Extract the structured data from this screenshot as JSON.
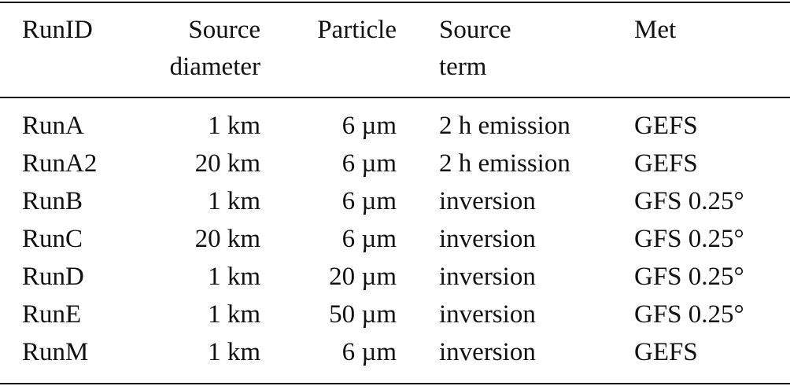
{
  "table": {
    "header": [
      [
        "RunID"
      ],
      [
        "Source",
        "diameter"
      ],
      [
        "Particle"
      ],
      [
        "Source",
        "term"
      ],
      [
        "Met"
      ]
    ],
    "rows": [
      [
        "RunA",
        "1 km",
        "6 µm",
        "2 h emission",
        "GEFS"
      ],
      [
        "RunA2",
        "20 km",
        "6 µm",
        "2 h emission",
        "GEFS"
      ],
      [
        "RunB",
        "1 km",
        "6 µm",
        "inversion",
        "GFS 0.25°"
      ],
      [
        "RunC",
        "20 km",
        "6 µm",
        "inversion",
        "GFS 0.25°"
      ],
      [
        "RunD",
        "1 km",
        "20 µm",
        "inversion",
        "GFS 0.25°"
      ],
      [
        "RunE",
        "1 km",
        "50 µm",
        "inversion",
        "GFS 0.25°"
      ],
      [
        "RunM",
        "1 km",
        "6 µm",
        "inversion",
        "GEFS"
      ]
    ]
  }
}
